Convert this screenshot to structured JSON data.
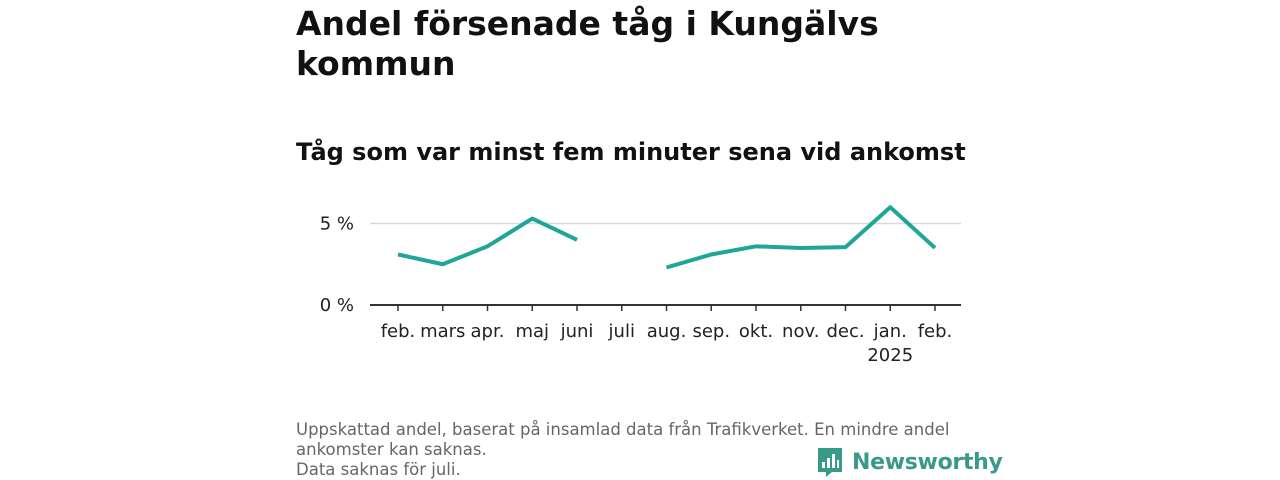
{
  "header": {
    "title": "Andel försenade tåg i Kungälvs kommun",
    "subtitle": "Tåg som var minst fem minuter sena vid ankomst"
  },
  "footnote": {
    "line1": "Uppskattad andel, baserat på insamlad data från Trafikverket. En mindre andel ankomster kan saknas.",
    "line2": "Data saknas för juli."
  },
  "brand": {
    "name": "Newsworthy",
    "icon": "bar-chart-logo-icon",
    "color": "#3a9a8a"
  },
  "chart_data": {
    "type": "line",
    "title": "Andel försenade tåg i Kungälvs kommun",
    "subtitle": "Tåg som var minst fem minuter sena vid ankomst",
    "categories": [
      "feb.",
      "mars",
      "apr.",
      "maj",
      "juni",
      "juli",
      "aug.",
      "sep.",
      "okt.",
      "nov.",
      "dec.",
      "jan.",
      "feb."
    ],
    "category_sublabels": [
      "",
      "",
      "",
      "",
      "",
      "",
      "",
      "",
      "",
      "",
      "",
      "2025",
      ""
    ],
    "series": [
      {
        "values": [
          3.1,
          2.5,
          3.6,
          5.3,
          4.0,
          null,
          2.3,
          3.1,
          3.6,
          3.5,
          3.55,
          6.0,
          3.5
        ],
        "color": "#1fa59a"
      }
    ],
    "y_ticks": [
      {
        "value": 0,
        "label": "0 %"
      },
      {
        "value": 5,
        "label": "5 %"
      }
    ],
    "ylim": [
      0,
      6.5
    ],
    "grid": true,
    "line_color": "#1fa59a",
    "grid_color": "#d9d9d9",
    "axis_color": "#333333"
  }
}
